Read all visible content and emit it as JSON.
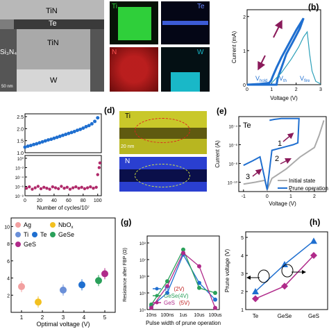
{
  "panel_a": {
    "layers": [
      "TiN",
      "Te",
      "TiN",
      "W"
    ],
    "side_label": "Si₃N₄",
    "scale": "50 nm",
    "maps": [
      {
        "element": "Ti",
        "color": "#2fcf3a"
      },
      {
        "element": "Te",
        "color": "#3c5bd6"
      },
      {
        "element": "N",
        "color": "#c42020"
      },
      {
        "element": "W",
        "color": "#19b8c8"
      }
    ],
    "map_scale": "50 nm"
  },
  "panel_b": {
    "letter": "(b)",
    "ylabel": "Current (mA)",
    "xlabel": "Voltage (V)",
    "yticks": [
      "2",
      "1",
      "0"
    ],
    "xticks": [
      "0",
      "1",
      "2",
      "3"
    ],
    "annotations": [
      "V",
      "hold",
      "V",
      "th",
      "V",
      "fire"
    ]
  },
  "panel_c": {
    "xlabel": "Number of cycles/10⁷",
    "xticks": [
      "0",
      "20",
      "40",
      "60",
      "80",
      "100"
    ],
    "top_yticks": [
      "2.5",
      "2.0",
      "1.5",
      "1.0"
    ],
    "bottom_yticks": [
      "10⁰",
      "10⁻²",
      "10⁻⁴",
      "10⁻⁶",
      "10⁻⁸"
    ]
  },
  "panel_d": {
    "letter": "(d)",
    "maps": [
      {
        "element": "Ti",
        "color": "#c9c82a"
      },
      {
        "element": "N",
        "color": "#2a3fd0"
      }
    ],
    "scale": "20 nm"
  },
  "panel_e": {
    "letter": "(e)",
    "title": "Te",
    "ylabel": "Current (A)",
    "xlabel": "Voltage (V)",
    "yticks": [
      "10⁻⁴",
      "10⁻⁶",
      "10⁻⁸",
      "10⁻¹⁰"
    ],
    "xticks": [
      "-1",
      "0",
      "1",
      "2"
    ],
    "step_labels": [
      "1",
      "2",
      "3"
    ],
    "legend": [
      "Initial state",
      "Prune operation"
    ]
  },
  "panel_f": {
    "xlabel": "Optimal voltage (V)",
    "xticks": [
      "1",
      "2",
      "3",
      "4",
      "5"
    ],
    "yticks": [
      "10",
      "8",
      "6",
      "4",
      "2"
    ],
    "legend": [
      "Ag",
      "NbO",
      "x",
      "Ti",
      "Te",
      "GeSe",
      "GeS"
    ]
  },
  "panel_g": {
    "letter": "(g)",
    "ylabel": "Resistance after FBP (Ω)",
    "xlabel": "Pulse width of prune operation",
    "xticks": [
      "10ns",
      "100ns",
      "1us",
      "10us",
      "100us"
    ],
    "yticks": [
      "10⁸",
      "10⁷",
      "10⁶",
      "10⁵",
      "10⁴"
    ],
    "legend": [
      {
        "name": "Te",
        "note": "(2V)",
        "color": "#1f6fd0"
      },
      {
        "name": "GeSe(4V)",
        "note": "",
        "color": "#2aa05a"
      },
      {
        "name": "GeS",
        "note": "(5V)",
        "color": "#b02a8a"
      }
    ]
  },
  "panel_h": {
    "letter": "(h)",
    "ylabel": "Prune voltage (V)",
    "xticks": [
      "Te",
      "GeSe",
      "GeS"
    ],
    "yticks": [
      "5",
      "4",
      "3",
      "2",
      "1"
    ]
  },
  "chart_data": [
    {
      "type": "line",
      "panel": "b",
      "xlabel": "Voltage (V)",
      "ylabel": "Current (mA)",
      "xlim": [
        0,
        3
      ],
      "ylim": [
        0,
        2.2
      ],
      "series": [
        {
          "x": [
            0.0,
            0.6,
            1.2,
            1.25,
            1.4,
            1.6,
            1.9,
            2.15,
            2.3,
            2.0,
            1.7,
            1.4,
            1.2,
            1.05,
            0.98,
            0.9,
            0.5,
            0.0
          ],
          "y": [
            0.0,
            0.0,
            0.0,
            0.2,
            0.5,
            0.9,
            1.3,
            1.65,
            1.95,
            1.6,
            1.2,
            0.8,
            0.5,
            0.25,
            0.12,
            0.05,
            0.02,
            0.0
          ]
        },
        {
          "x": [
            1.0,
            1.4,
            1.8,
            2.1,
            2.3,
            2.45,
            2.55,
            2.65,
            2.8,
            3.0
          ],
          "y": [
            0.05,
            0.35,
            0.75,
            1.1,
            1.4,
            1.55,
            0.9,
            0.4,
            0.1,
            0.02
          ]
        }
      ]
    },
    {
      "type": "scatter",
      "panel": "c-top",
      "xlabel": "Number of cycles/10⁷",
      "xlim": [
        0,
        105
      ],
      "ylim": [
        1.0,
        2.5
      ],
      "x": [
        0,
        4,
        8,
        12,
        16,
        20,
        24,
        28,
        32,
        36,
        40,
        44,
        48,
        52,
        56,
        60,
        64,
        68,
        72,
        76,
        80,
        84,
        88,
        92,
        96,
        100
      ],
      "y": [
        1.23,
        1.27,
        1.3,
        1.34,
        1.37,
        1.41,
        1.45,
        1.49,
        1.53,
        1.56,
        1.6,
        1.64,
        1.68,
        1.72,
        1.76,
        1.8,
        1.84,
        1.88,
        1.93,
        1.97,
        2.02,
        2.08,
        2.13,
        2.2,
        2.3,
        2.45
      ]
    },
    {
      "type": "scatter",
      "panel": "c-bottom",
      "xlabel": "Number of cycles/10⁷",
      "xlim": [
        0,
        105
      ],
      "ylim": [
        -8,
        0
      ],
      "x": [
        2,
        6,
        10,
        14,
        18,
        22,
        26,
        30,
        34,
        38,
        42,
        46,
        50,
        54,
        58,
        62,
        66,
        70,
        74,
        78,
        82,
        86,
        90,
        94,
        98,
        100,
        102,
        103
      ],
      "y": [
        -6.4,
        -6.1,
        -6.6,
        -6.3,
        -6.0,
        -6.5,
        -6.2,
        -6.4,
        -6.6,
        -6.1,
        -6.3,
        -6.5,
        -6.0,
        -6.4,
        -6.2,
        -6.6,
        -6.3,
        -6.1,
        -6.4,
        -6.2,
        -6.5,
        -6.3,
        -6.1,
        -6.4,
        -6.2,
        -3.5,
        -2.0,
        -1.0
      ]
    },
    {
      "type": "line",
      "panel": "e",
      "xlabel": "Voltage (V)",
      "ylabel": "Current (A)",
      "xlim": [
        -1.2,
        2.5
      ],
      "ylim": [
        -11,
        -3
      ],
      "series": [
        {
          "name": "Initial state",
          "x": [
            -1.0,
            -0.5,
            -0.1,
            0.0,
            0.2,
            0.8,
            1.4,
            2.0,
            2.2,
            2.4
          ],
          "y": [
            -10.2,
            -10.0,
            -9.8,
            -10.8,
            -9.6,
            -8.6,
            -7.3,
            -6.3,
            -5.0,
            -3.4
          ]
        },
        {
          "name": "Prune operation",
          "x": [
            -1.0,
            -0.6,
            -0.3,
            0.0,
            0.2,
            0.8,
            1.1,
            1.3,
            1.35,
            1.1,
            0.6,
            0.3,
            0.1
          ],
          "y": [
            -8.2,
            -7.7,
            -7.3,
            -10.8,
            -6.6,
            -6.2,
            -6.0,
            -5.8,
            -3.2,
            -3.2,
            -3.2,
            -3.3,
            -3.4
          ]
        }
      ]
    },
    {
      "type": "scatter",
      "panel": "f",
      "xlabel": "Optimal voltage (V)",
      "xlim": [
        0.5,
        5.5
      ],
      "ylim": [
        0,
        11
      ],
      "series": [
        {
          "name": "Ag",
          "x": [
            1
          ],
          "y": [
            3.0
          ]
        },
        {
          "name": "NbOx",
          "x": [
            1.8
          ],
          "y": [
            1.2
          ]
        },
        {
          "name": "Ti",
          "x": [
            3
          ],
          "y": [
            2.6
          ]
        },
        {
          "name": "Te",
          "x": [
            3.9
          ],
          "y": [
            3.2
          ]
        },
        {
          "name": "GeSe",
          "x": [
            4.7
          ],
          "y": [
            3.7
          ]
        },
        {
          "name": "GeS",
          "x": [
            5
          ],
          "y": [
            4.5
          ]
        }
      ]
    },
    {
      "type": "line",
      "panel": "g",
      "xlabel": "Pulse width of prune operation",
      "ylabel": "Resistance after FBP (Ω)",
      "categories": [
        "10ns",
        "100ns",
        "1us",
        "10us",
        "100us"
      ],
      "ylim": [
        4,
        8
      ],
      "series": [
        {
          "name": "Te (2V)",
          "values": [
            4.2,
            5.0,
            7.3,
            5.6,
            4.6
          ]
        },
        {
          "name": "GeSe(4V)",
          "values": [
            4.3,
            5.7,
            7.6,
            5.3,
            5.0
          ]
        },
        {
          "name": "GeS (5V)",
          "values": [
            4.1,
            5.4,
            7.4,
            6.6,
            4.1
          ]
        }
      ]
    },
    {
      "type": "line",
      "panel": "h",
      "ylabel": "Prune voltage (V)",
      "categories": [
        "Te",
        "GeSe",
        "GeS"
      ],
      "ylim": [
        1,
        5
      ],
      "series": [
        {
          "x": [
            "Te",
            "GeSe",
            "GeS"
          ],
          "values": [
            2.0,
            3.5,
            4.8
          ],
          "marker": "triangle"
        },
        {
          "x": [
            "Te",
            "GeSe",
            "GeS"
          ],
          "values": [
            1.6,
            2.3,
            4.0
          ],
          "marker": "square"
        }
      ]
    }
  ]
}
